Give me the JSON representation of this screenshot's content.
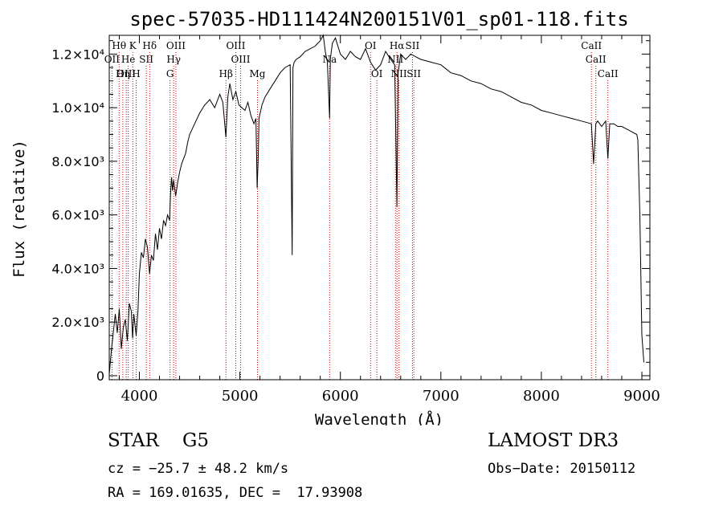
{
  "chart_data": {
    "type": "line",
    "title": "spec-57035-HD111424N200151V01_sp01-118.fits",
    "xlabel": "Wavelength (Å)",
    "ylabel": "Flux (relative)",
    "xlim": [
      3700,
      9080
    ],
    "ylim": [
      -150,
      12700
    ],
    "x_ticks": [
      4000,
      5000,
      6000,
      7000,
      8000,
      9000
    ],
    "x_tick_labels": [
      "4000",
      "5000",
      "6000",
      "7000",
      "8000",
      "9000"
    ],
    "y_ticks": [
      0,
      2000,
      4000,
      6000,
      8000,
      10000,
      12000
    ],
    "y_tick_labels": [
      "0",
      "2.0×10³",
      "4.0×10³",
      "6.0×10³",
      "8.0×10³",
      "1.0×10⁴",
      "1.2×10⁴"
    ],
    "series": [
      {
        "name": "spectrum",
        "x": [
          3700,
          3720,
          3740,
          3760,
          3780,
          3800,
          3820,
          3840,
          3860,
          3880,
          3900,
          3920,
          3933,
          3945,
          3968,
          3985,
          4000,
          4020,
          4040,
          4060,
          4080,
          4101,
          4120,
          4140,
          4160,
          4180,
          4200,
          4220,
          4240,
          4260,
          4280,
          4300,
          4310,
          4320,
          4330,
          4340,
          4361,
          4380,
          4400,
          4420,
          4440,
          4460,
          4480,
          4500,
          4550,
          4600,
          4650,
          4700,
          4750,
          4800,
          4830,
          4861,
          4880,
          4900,
          4930,
          4960,
          4990,
          5020,
          5050,
          5080,
          5110,
          5140,
          5160,
          5172,
          5183,
          5190,
          5220,
          5250,
          5300,
          5350,
          5400,
          5450,
          5500,
          5520,
          5528,
          5540,
          5560,
          5600,
          5650,
          5700,
          5750,
          5800,
          5830,
          5850,
          5870,
          5893,
          5900,
          5920,
          5950,
          6000,
          6050,
          6100,
          6150,
          6200,
          6250,
          6300,
          6350,
          6400,
          6450,
          6500,
          6540,
          6563,
          6575,
          6600,
          6650,
          6700,
          6750,
          6800,
          6900,
          7000,
          7100,
          7200,
          7300,
          7400,
          7500,
          7600,
          7700,
          7800,
          7900,
          8000,
          8100,
          8200,
          8300,
          8400,
          8498,
          8520,
          8542,
          8560,
          8600,
          8640,
          8662,
          8680,
          8720,
          8760,
          8800,
          8850,
          8900,
          8950,
          8960,
          8980,
          9000,
          9020
        ],
        "values": [
          50,
          900,
          1600,
          2300,
          1600,
          2500,
          1000,
          1800,
          2100,
          1300,
          2700,
          2400,
          1400,
          2300,
          1500,
          2400,
          3800,
          4600,
          4400,
          5100,
          4800,
          3800,
          4500,
          4300,
          5300,
          4700,
          5500,
          5100,
          5800,
          5600,
          6000,
          5800,
          6800,
          7400,
          6900,
          7300,
          6700,
          7200,
          7600,
          7900,
          8100,
          8300,
          8700,
          9000,
          9400,
          9800,
          10100,
          10300,
          10000,
          10500,
          10200,
          8900,
          10400,
          10900,
          10300,
          10600,
          10100,
          10000,
          9900,
          10200,
          9700,
          9400,
          9600,
          7000,
          8200,
          9600,
          10100,
          10400,
          10700,
          11000,
          11300,
          11500,
          11600,
          4500,
          11500,
          11700,
          11800,
          11900,
          12100,
          12200,
          12300,
          12500,
          12800,
          12100,
          11700,
          9600,
          11800,
          12400,
          12600,
          12000,
          11800,
          12100,
          11900,
          11800,
          12200,
          11700,
          11400,
          11600,
          12100,
          11800,
          11600,
          6300,
          11300,
          12000,
          11800,
          12000,
          11900,
          11800,
          11700,
          11600,
          11300,
          11200,
          11000,
          10900,
          10700,
          10600,
          10400,
          10200,
          10100,
          9900,
          9800,
          9700,
          9600,
          9500,
          9400,
          7900,
          9400,
          9500,
          9300,
          9500,
          8100,
          9400,
          9400,
          9300,
          9300,
          9200,
          9100,
          9000,
          8800,
          6000,
          1500,
          500
        ]
      }
    ],
    "lines": [
      {
        "label": "Hθ",
        "x": 3798,
        "row": 1
      },
      {
        "label": "OII",
        "x": 3727,
        "row": 2
      },
      {
        "label": "OIII",
        "x": 3869,
        "row": 3
      },
      {
        "label": "K",
        "x": 3934,
        "row": 1
      },
      {
        "label": "He",
        "x": 3889,
        "row": 2
      },
      {
        "label": "Hη",
        "x": 3835,
        "row": 3
      },
      {
        "label": "SII",
        "x": 4069,
        "row": 2
      },
      {
        "label": "H",
        "x": 3968,
        "row": 3
      },
      {
        "label": "Hδ",
        "x": 4102,
        "row": 1
      },
      {
        "label": "OIII",
        "x": 4363,
        "row": 1
      },
      {
        "label": "Hγ",
        "x": 4341,
        "row": 2
      },
      {
        "label": "G",
        "x": 4305,
        "row": 3
      },
      {
        "label": "Hβ",
        "x": 4861,
        "row": 3
      },
      {
        "label": "OIII",
        "x": 4959,
        "row": 1
      },
      {
        "label": "OIII",
        "x": 5007,
        "row": 2
      },
      {
        "label": "Mg",
        "x": 5175,
        "row": 3
      },
      {
        "label": "Na",
        "x": 5893,
        "row": 2
      },
      {
        "label": "OI",
        "x": 6300,
        "row": 1
      },
      {
        "label": "OI",
        "x": 6363,
        "row": 3
      },
      {
        "label": "Hα",
        "x": 6563,
        "row": 1
      },
      {
        "label": "SII",
        "x": 6717,
        "row": 1
      },
      {
        "label": "NII",
        "x": 6548,
        "row": 2
      },
      {
        "label": "NII",
        "x": 6583,
        "row": 3
      },
      {
        "label": "SII",
        "x": 6731,
        "row": 3
      },
      {
        "label": "CaII",
        "x": 8498,
        "row": 1
      },
      {
        "label": "CaII",
        "x": 8542,
        "row": 2
      },
      {
        "label": "CaII",
        "x": 8662,
        "row": 3
      }
    ],
    "grid": false,
    "legend": "none"
  },
  "footer": {
    "star_type": "STAR    G5",
    "survey": "LAMOST DR3",
    "cz": "cz = −25.7 ± 48.2 km/s",
    "obs_date": "Obs−Date: 20150112",
    "radec": "RA = 169.01635, DEC =  17.93908"
  },
  "colors": {
    "spectrum": "#000000",
    "line_marker": "#cc0000",
    "axis": "#000000"
  }
}
